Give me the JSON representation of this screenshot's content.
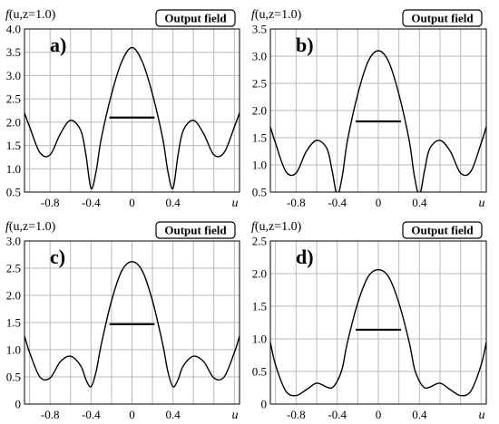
{
  "chart_data": [
    {
      "type": "line",
      "panel_label": "a)",
      "badge": "Output field",
      "ylabel_prefix": "f",
      "ylabel_args": "(u,z=1.0)",
      "xlabel": "u",
      "xlim": [
        -1.05,
        1.05
      ],
      "ylim": [
        0.5,
        4.0
      ],
      "xticks": [
        -0.8,
        -0.4,
        0,
        0.4
      ],
      "xtick_labels": [
        "-0.8",
        "-0.4",
        "0",
        "0.4"
      ],
      "yticks": [
        0.5,
        1.0,
        1.5,
        2.0,
        2.5,
        3.0,
        3.5,
        4.0
      ],
      "ytick_labels": [
        "0.5",
        "1.0",
        "1.5",
        "2.0",
        "2.5",
        "3.0",
        "3.5",
        "4.0"
      ],
      "grid": true,
      "x": [
        -1.05,
        -1.0,
        -0.9,
        -0.8,
        -0.7,
        -0.6,
        -0.5,
        -0.45,
        -0.4,
        -0.35,
        -0.3,
        -0.2,
        -0.1,
        0,
        0.1,
        0.2,
        0.3,
        0.35,
        0.4,
        0.45,
        0.5,
        0.6,
        0.7,
        0.8,
        0.9,
        1.0,
        1.05
      ],
      "y": [
        2.2,
        1.9,
        1.35,
        1.3,
        1.75,
        2.04,
        1.82,
        1.3,
        0.58,
        0.95,
        1.65,
        2.6,
        3.3,
        3.6,
        3.3,
        2.6,
        1.65,
        0.95,
        0.58,
        1.3,
        1.82,
        2.04,
        1.75,
        1.3,
        1.35,
        1.9,
        2.2
      ],
      "hline": {
        "y": 2.1,
        "x": [
          -0.22,
          0.22
        ]
      }
    },
    {
      "type": "line",
      "panel_label": "b)",
      "badge": "Output field",
      "ylabel_prefix": "f",
      "ylabel_args": "(u,z=1.0)",
      "xlabel": "u",
      "xlim": [
        -1.05,
        1.05
      ],
      "ylim": [
        0.5,
        3.5
      ],
      "xticks": [
        -0.8,
        -0.4,
        0,
        0.4
      ],
      "xtick_labels": [
        "-0.8",
        "-0.4",
        "0",
        "0.4"
      ],
      "yticks": [
        0.5,
        1.0,
        1.5,
        2.0,
        2.5,
        3.0,
        3.5
      ],
      "ytick_labels": [
        "0.5",
        "1.0",
        "1.5",
        "2.0",
        "2.5",
        "3.0",
        "3.5"
      ],
      "grid": true,
      "x": [
        -1.05,
        -1.0,
        -0.9,
        -0.8,
        -0.7,
        -0.6,
        -0.5,
        -0.45,
        -0.4,
        -0.35,
        -0.3,
        -0.2,
        -0.1,
        0,
        0.1,
        0.2,
        0.3,
        0.35,
        0.4,
        0.45,
        0.5,
        0.6,
        0.7,
        0.8,
        0.9,
        1.0,
        1.05
      ],
      "y": [
        1.7,
        1.4,
        0.88,
        0.85,
        1.25,
        1.45,
        1.3,
        0.9,
        0.45,
        0.8,
        1.45,
        2.3,
        2.9,
        3.1,
        2.9,
        2.3,
        1.45,
        0.8,
        0.45,
        0.9,
        1.3,
        1.45,
        1.25,
        0.85,
        0.88,
        1.4,
        1.7
      ],
      "hline": {
        "y": 1.8,
        "x": [
          -0.22,
          0.22
        ]
      }
    },
    {
      "type": "line",
      "panel_label": "c)",
      "badge": "Output field",
      "ylabel_prefix": "f",
      "ylabel_args": "(u,z=1.0)",
      "xlabel": "u",
      "xlim": [
        -1.05,
        1.05
      ],
      "ylim": [
        0,
        3.0
      ],
      "xticks": [
        -0.8,
        -0.4,
        0,
        0.4
      ],
      "xtick_labels": [
        "-0.8",
        "-0.4",
        "0",
        "0.4"
      ],
      "yticks": [
        0,
        0.5,
        1.0,
        1.5,
        2.0,
        2.5,
        3.0
      ],
      "ytick_labels": [
        "0",
        "0.5",
        "1.0",
        "1.5",
        "2.0",
        "2.5",
        "3.0"
      ],
      "grid": true,
      "x": [
        -1.05,
        -1.0,
        -0.9,
        -0.8,
        -0.7,
        -0.6,
        -0.5,
        -0.45,
        -0.4,
        -0.35,
        -0.3,
        -0.2,
        -0.1,
        0,
        0.1,
        0.2,
        0.3,
        0.35,
        0.4,
        0.45,
        0.5,
        0.6,
        0.7,
        0.8,
        0.9,
        1.0,
        1.05
      ],
      "y": [
        1.25,
        0.95,
        0.5,
        0.48,
        0.78,
        0.88,
        0.7,
        0.45,
        0.32,
        0.6,
        1.1,
        1.9,
        2.45,
        2.62,
        2.45,
        1.9,
        1.1,
        0.6,
        0.32,
        0.45,
        0.7,
        0.88,
        0.78,
        0.48,
        0.5,
        0.95,
        1.25
      ],
      "hline": {
        "y": 1.47,
        "x": [
          -0.22,
          0.22
        ]
      }
    },
    {
      "type": "line",
      "panel_label": "d)",
      "badge": "Output field",
      "ylabel_prefix": "f",
      "ylabel_args": "(u,z=1.0)",
      "xlabel": "u",
      "xlim": [
        -1.05,
        1.05
      ],
      "ylim": [
        0,
        2.5
      ],
      "xticks": [
        -0.8,
        -0.4,
        0,
        0.4
      ],
      "xtick_labels": [
        "-0.8",
        "-0.4",
        "0",
        "0.4"
      ],
      "yticks": [
        0,
        0.5,
        1.0,
        1.5,
        2.0,
        2.5
      ],
      "ytick_labels": [
        "0",
        "0.5",
        "1.0",
        "1.5",
        "2.0",
        "2.5"
      ],
      "grid": true,
      "x": [
        -1.05,
        -1.0,
        -0.9,
        -0.8,
        -0.7,
        -0.6,
        -0.5,
        -0.45,
        -0.4,
        -0.35,
        -0.3,
        -0.2,
        -0.1,
        0,
        0.1,
        0.2,
        0.3,
        0.35,
        0.4,
        0.45,
        0.5,
        0.6,
        0.7,
        0.8,
        0.9,
        1.0,
        1.05
      ],
      "y": [
        0.95,
        0.6,
        0.2,
        0.13,
        0.22,
        0.32,
        0.26,
        0.25,
        0.35,
        0.55,
        0.95,
        1.55,
        1.95,
        2.06,
        1.95,
        1.55,
        0.95,
        0.55,
        0.35,
        0.25,
        0.26,
        0.32,
        0.22,
        0.13,
        0.2,
        0.6,
        0.95
      ],
      "hline": {
        "y": 1.14,
        "x": [
          -0.22,
          0.22
        ]
      }
    }
  ]
}
